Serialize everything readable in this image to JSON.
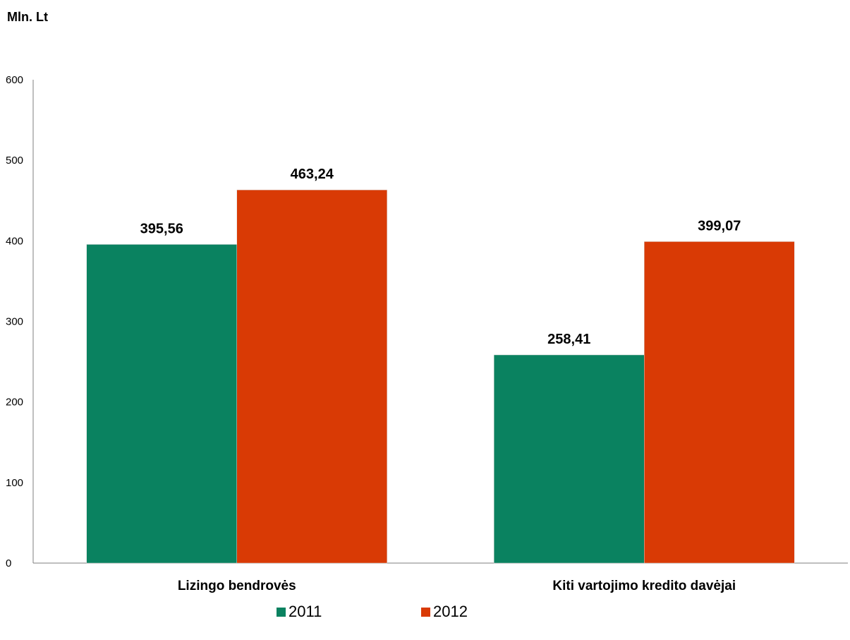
{
  "chart_data": {
    "type": "bar",
    "ylabel": "Mln. Lt",
    "categories": [
      "Lizingo bendrovės",
      "Kiti vartojimo kredito davėjai"
    ],
    "series": [
      {
        "name": "2011",
        "color": "#0a8260",
        "values": [
          395.56,
          258.41
        ],
        "labels": [
          "395,56",
          "258,41"
        ]
      },
      {
        "name": "2012",
        "color": "#d93a05",
        "values": [
          463.24,
          399.07
        ],
        "labels": [
          "463,24",
          "399,07"
        ]
      }
    ],
    "ylim": [
      0,
      600
    ],
    "yticks": [
      0,
      100,
      200,
      300,
      400,
      500,
      600
    ],
    "grid": false,
    "legend_position": "bottom"
  }
}
